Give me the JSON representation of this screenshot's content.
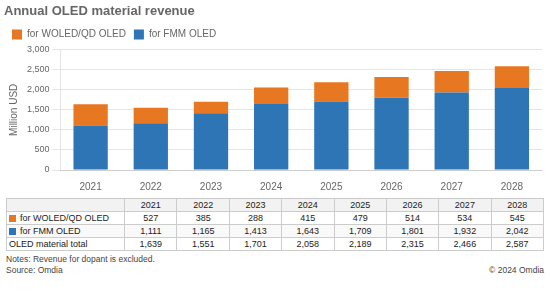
{
  "chart_data": {
    "type": "bar",
    "stacked": true,
    "title": "Annual OLED material revenue",
    "y_label": "Million USD",
    "categories": [
      "2021",
      "2022",
      "2023",
      "2024",
      "2025",
      "2026",
      "2027",
      "2028"
    ],
    "series": [
      {
        "name": "for FMM OLED",
        "color": "#2E75B6",
        "values": [
          1111,
          1165,
          1413,
          1643,
          1709,
          1801,
          1932,
          2042
        ]
      },
      {
        "name": "for WOLED/QD OLED",
        "color": "#E87722",
        "values": [
          527,
          385,
          288,
          415,
          479,
          514,
          534,
          545
        ]
      }
    ],
    "ylim": [
      0,
      3000
    ],
    "yticks": [
      0,
      500,
      {
        "value": 1000,
        "label": "1,000"
      },
      {
        "value": 1500,
        "label": "1,500"
      },
      {
        "value": 2000,
        "label": "2,000"
      },
      {
        "value": 2500,
        "label": "2,500"
      },
      {
        "value": 3000,
        "label": "3,000"
      }
    ],
    "grid": true,
    "legend": "upper left",
    "table": {
      "rows": [
        {
          "name": "for WOLED/QD OLED",
          "color": "#E87722",
          "values": [
            527,
            385,
            288,
            415,
            479,
            514,
            534,
            545
          ]
        },
        {
          "name": "for FMM OLED",
          "color": "#2E75B6",
          "values": [
            1111,
            1165,
            1413,
            1643,
            1709,
            1801,
            1932,
            2042
          ],
          "value_labels": [
            "1,111",
            "1,165",
            "1,413",
            "1,643",
            "1,709",
            "1,801",
            "1,932",
            "2,042"
          ]
        },
        {
          "name": "OLED material total",
          "values": [
            1639,
            1551,
            1701,
            2058,
            2189,
            2315,
            2466,
            2587
          ],
          "value_labels": [
            "1,639",
            "1,551",
            "1,701",
            "2,058",
            "2,189",
            "2,315",
            "2,466",
            "2,587"
          ]
        }
      ]
    },
    "annotations": [
      "Notes: Revenue for dopant is excluded.",
      "Source: Omdia",
      "© 2024 Omdia"
    ]
  }
}
